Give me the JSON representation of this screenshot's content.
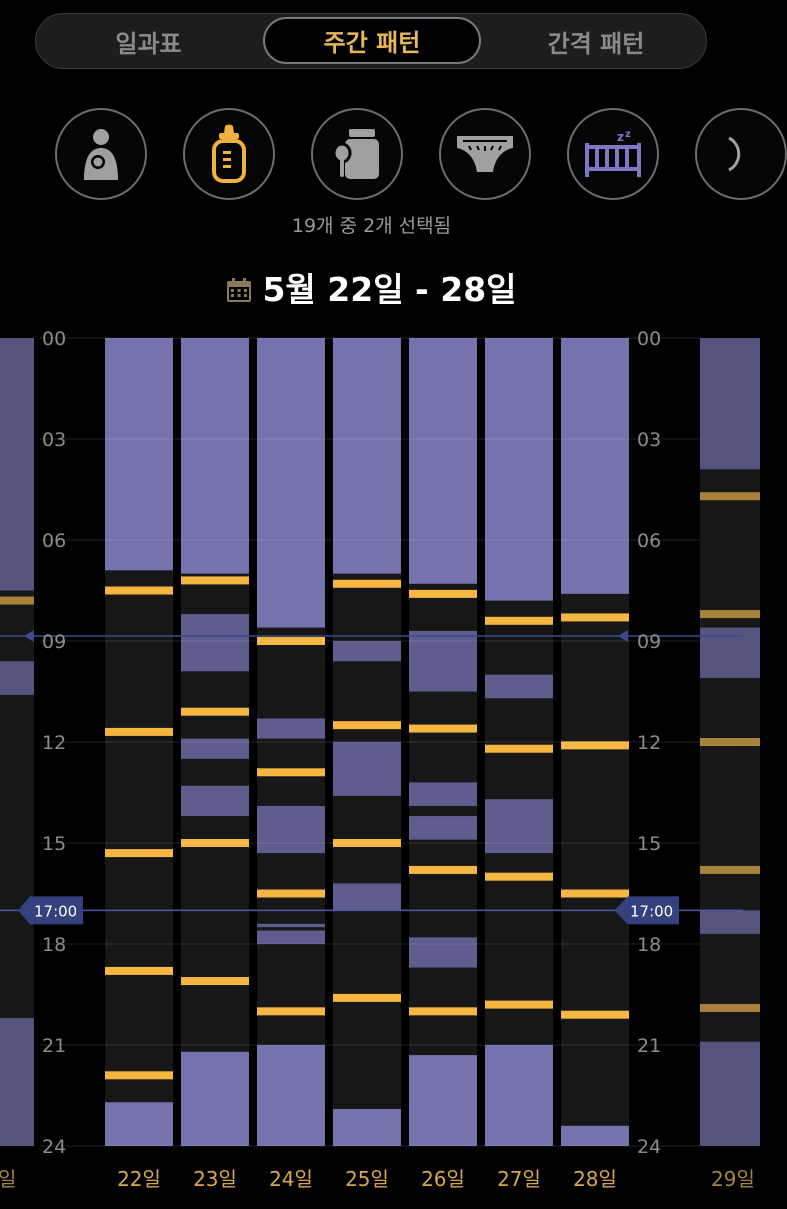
{
  "tabs": [
    {
      "label": "일과표",
      "active": false
    },
    {
      "label": "주간 패턴",
      "active": true
    },
    {
      "label": "간격 패턴",
      "active": false
    }
  ],
  "activity_icons": [
    {
      "name": "breastfeeding-icon",
      "selected": false
    },
    {
      "name": "bottle-icon",
      "selected": true,
      "color": "#f0b23e"
    },
    {
      "name": "formula-icon",
      "selected": false
    },
    {
      "name": "diaper-icon",
      "selected": false
    },
    {
      "name": "sleep-crib-icon",
      "selected": true,
      "color": "#7d78c5"
    },
    {
      "name": "moon-icon",
      "selected": false
    }
  ],
  "selection_text": "19개 중 2개 선택됨",
  "date_range": "5월 22일 - 28일",
  "colors": {
    "sleep": "#7473ae",
    "nap": "#5e5d8e",
    "feed": "#f5b642",
    "column": "#171717",
    "marker": "#3c4a8c"
  },
  "chart_data": {
    "type": "timeline",
    "y_ticks": [
      "00",
      "03",
      "06",
      "09",
      "12",
      "15",
      "18",
      "21",
      "24"
    ],
    "y_range_hours": [
      0,
      24
    ],
    "current_time_label": "17:00",
    "current_time_hour": 17.0,
    "secondary_marker_hour": 8.85,
    "days": [
      {
        "label": "22일",
        "sleep": [
          [
            0,
            6.9
          ],
          [
            22.7,
            24
          ]
        ],
        "feeds": [
          7.5,
          11.7,
          15.3,
          18.8,
          21.9
        ]
      },
      {
        "label": "23일",
        "sleep": [
          [
            0,
            7.0
          ],
          [
            8.2,
            9.9
          ],
          [
            11.9,
            12.5
          ],
          [
            13.3,
            14.2
          ],
          [
            21.2,
            24
          ]
        ],
        "feeds": [
          7.2,
          11.1,
          15.0,
          19.1
        ]
      },
      {
        "label": "24일",
        "sleep": [
          [
            0,
            8.6
          ],
          [
            11.3,
            11.9
          ],
          [
            13.9,
            15.3
          ],
          [
            17.4,
            17.5
          ],
          [
            17.6,
            18.0
          ],
          [
            21.0,
            24
          ]
        ],
        "feeds": [
          9.0,
          12.9,
          16.5,
          20.0
        ]
      },
      {
        "label": "25일",
        "sleep": [
          [
            0,
            7.0
          ],
          [
            9.0,
            9.6
          ],
          [
            12.0,
            13.6
          ],
          [
            16.2,
            17.0
          ],
          [
            22.9,
            24
          ]
        ],
        "feeds": [
          7.3,
          11.5,
          15.0,
          19.6
        ]
      },
      {
        "label": "26일",
        "sleep": [
          [
            0,
            7.3
          ],
          [
            8.7,
            10.5
          ],
          [
            13.2,
            13.9
          ],
          [
            14.2,
            14.9
          ],
          [
            17.8,
            18.7
          ],
          [
            21.3,
            24
          ]
        ],
        "feeds": [
          7.6,
          11.6,
          15.8,
          20.0
        ]
      },
      {
        "label": "27일",
        "sleep": [
          [
            0,
            7.8
          ],
          [
            10.0,
            10.7
          ],
          [
            13.7,
            15.3
          ],
          [
            21.0,
            24
          ]
        ],
        "feeds": [
          8.4,
          12.2,
          16.0,
          19.8
        ]
      },
      {
        "label": "28일",
        "sleep": [
          [
            0,
            7.6
          ],
          [
            23.4,
            24
          ]
        ],
        "feeds": [
          8.3,
          12.1,
          16.5,
          20.1
        ]
      }
    ],
    "partial_prev": {
      "label": "일",
      "sleep": [
        [
          0,
          7.5
        ],
        [
          9.6,
          10.6
        ],
        [
          20.2,
          24
        ]
      ],
      "feeds": [
        7.8
      ]
    },
    "partial_next": {
      "label": "29일",
      "sleep": [
        [
          0,
          3.9
        ],
        [
          8.6,
          10.1
        ],
        [
          17.0,
          17.7
        ],
        [
          20.9,
          24
        ]
      ],
      "feeds": [
        4.7,
        8.2,
        12.0,
        15.8,
        19.9
      ]
    }
  }
}
